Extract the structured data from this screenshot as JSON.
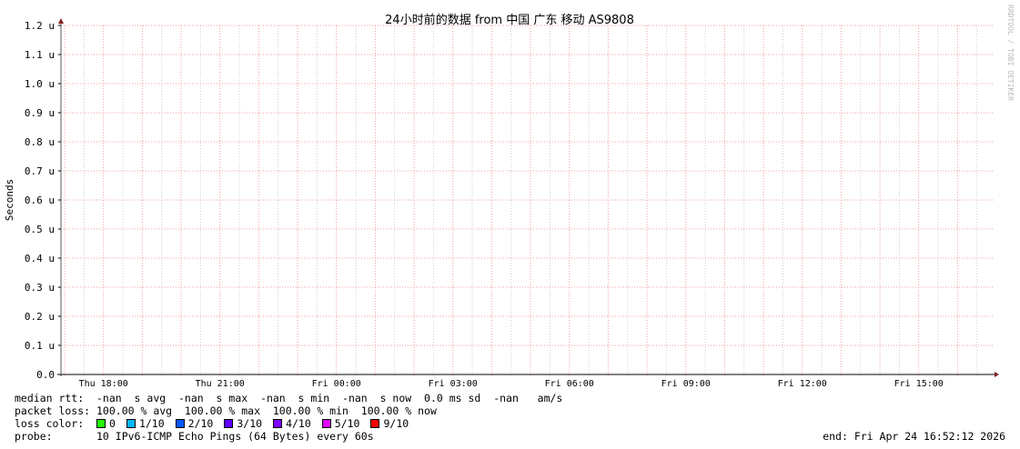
{
  "chart_data": {
    "type": "line",
    "title": "24小时前的数据 from 中国 广东 移动 AS9808",
    "ylabel": "Seconds",
    "xlabel": "",
    "ylim": [
      0,
      1.2
    ],
    "y_unit_suffix": "u",
    "y_ticks": [
      "0.0",
      "0.1 u",
      "0.2 u",
      "0.3 u",
      "0.4 u",
      "0.5 u",
      "0.6 u",
      "0.7 u",
      "0.8 u",
      "0.9 u",
      "1.0 u",
      "1.1 u",
      "1.2 u"
    ],
    "x_ticks": [
      "Thu 18:00",
      "Thu 21:00",
      "Fri 00:00",
      "Fri 03:00",
      "Fri 06:00",
      "Fri 09:00",
      "Fri 12:00",
      "Fri 15:00"
    ],
    "series": [],
    "grid": true,
    "watermark": "RRDTOOL / TOBI OETIKER"
  },
  "legend": {
    "median_rtt": "median rtt:  -nan  s avg  -nan  s max  -nan  s min  -nan  s now  0.0 ms sd  -nan   am/s",
    "packet_loss": "packet loss: 100.00 % avg  100.00 % max  100.00 % min  100.00 % now",
    "loss_color_label": "loss color:  ",
    "loss_colors": [
      {
        "label": "0",
        "color": "#26ff00"
      },
      {
        "label": "1/10",
        "color": "#00b8ff"
      },
      {
        "label": "2/10",
        "color": "#0059ff"
      },
      {
        "label": "3/10",
        "color": "#5e00ff"
      },
      {
        "label": "4/10",
        "color": "#7e00ff"
      },
      {
        "label": "5/10",
        "color": "#dd00ff"
      },
      {
        "label": "9/10",
        "color": "#ff0000"
      }
    ],
    "probe": "probe:       10 IPv6-ICMP Echo Pings (64 Bytes) every 60s",
    "end": "end: Fri Apr 24 16:52:12 2026"
  },
  "colors": {
    "major_grid": "#f0a0a0",
    "minor_grid": "#d0d0d0",
    "axis": "#000000",
    "arrow": "#7f1f1f"
  }
}
